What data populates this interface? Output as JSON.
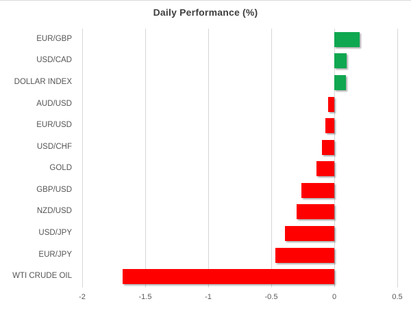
{
  "chart": {
    "title": "Daily Performance (%)"
  },
  "chart_data": {
    "type": "bar",
    "orientation": "horizontal",
    "title": "Daily Performance (%)",
    "categories": [
      "EUR/GBP",
      "USD/CAD",
      "DOLLAR INDEX",
      "AUD/USD",
      "EUR/USD",
      "USD/CHF",
      "GOLD",
      "GBP/USD",
      "NZD/USD",
      "USD/JPY",
      "EUR/JPY",
      "WTI CRUDE OIL"
    ],
    "values": [
      0.2,
      0.1,
      0.09,
      -0.05,
      -0.07,
      -0.1,
      -0.14,
      -0.26,
      -0.3,
      -0.39,
      -0.47,
      -1.68
    ],
    "xlabel": "",
    "ylabel": "",
    "xlim": [
      -2,
      0.5
    ],
    "xticks": [
      -2,
      -1.5,
      -1,
      -0.5,
      0,
      0.5
    ],
    "xtick_labels": [
      "-2",
      "-1.5",
      "-1",
      "-0.5",
      "0",
      "0.5"
    ],
    "grid": "vertical-only",
    "legend": "none",
    "colors": {
      "positive": "#0FA750",
      "negative": "#FE0000",
      "gridline": "#d6d6d6",
      "title_text": "#3f3f3f",
      "axis_text": "#595959"
    }
  }
}
